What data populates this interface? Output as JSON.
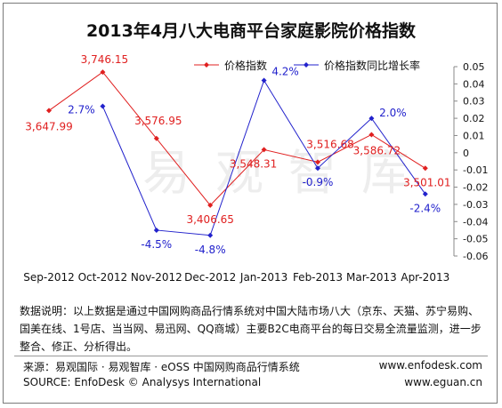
{
  "chart_data": {
    "type": "line",
    "title": "2013年4月八大电商平台家庭影院价格指数",
    "categories": [
      "Sep-2012",
      "Oct-2012",
      "Nov-2012",
      "Dec-2012",
      "Jan-2013",
      "Feb-2013",
      "Mar-2013",
      "Apr-2013"
    ],
    "series": [
      {
        "name": "价格指数",
        "axis": "left",
        "color": "#e02020",
        "values": [
          3647.99,
          3746.15,
          3576.95,
          3406.65,
          3548.31,
          3516.68,
          3586.72,
          3501.01
        ],
        "labels": [
          "3,647.99",
          "3,746.15",
          "3,576.95",
          "3,406.65",
          "3,548.31",
          "3,516.68",
          "3,586.72",
          "3,501.01"
        ]
      },
      {
        "name": "价格指数同比增长率",
        "axis": "right",
        "color": "#2222cc",
        "values": [
          null,
          0.027,
          -0.045,
          -0.048,
          0.042,
          -0.009,
          0.02,
          -0.024
        ],
        "labels": [
          "",
          "2.7%",
          "-4.5%",
          "-4.8%",
          "4.2%",
          "-0.9%",
          "2.0%",
          "-2.4%"
        ]
      }
    ],
    "y2_ticks": [
      "0.05",
      "0.04",
      "0.03",
      "0.02",
      "0.01",
      "0",
      "-0.01",
      "-0.02",
      "-0.03",
      "-0.04",
      "-0.05",
      "-0.06"
    ],
    "y2lim": [
      -0.06,
      0.05
    ],
    "legend": "top",
    "grid": false
  },
  "note": "数据说明：以上数据是通过中国网购商品行情系统对中国大陆市场八大（京东、天猫、苏宁易购、国美在线、1号店、当当网、易迅网、QQ商城）主要B2C电商平台的每日交易全流量监测，进一步整合、修正、分析得出。",
  "source_cn": "来源：易观国际 · 易观智库 · eOSS 中国网购商品行情系统",
  "source_en": "SOURCE: EnfoDesk © Analysys International",
  "web1": "www.enfodesk.com",
  "web2": "www.eguan.cn",
  "watermark": "易观智库"
}
